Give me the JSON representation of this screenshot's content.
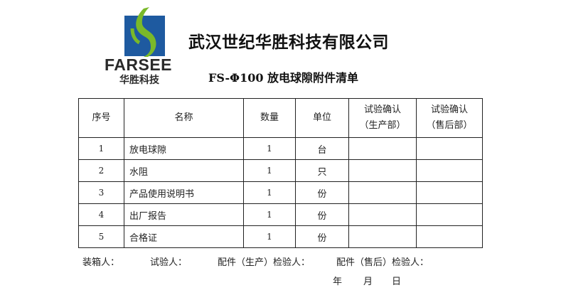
{
  "logo": {
    "brand": "FARSEE",
    "brand_cn": "华胜科技",
    "colors": {
      "blue": "#1e5aa0",
      "green": "#7ab929"
    }
  },
  "company": "武汉世纪华胜科技有限公司",
  "title": "FS-Φ100 放电球隙附件清单",
  "table": {
    "headers": [
      "序号",
      "名称",
      "数量",
      "单位",
      "试验确认（生产部）",
      "试验确认（售后部）"
    ],
    "header_lines": [
      [
        "试验确认",
        "（生产部）"
      ],
      [
        "试验确认",
        "（售后部）"
      ]
    ],
    "rows": [
      {
        "no": "1",
        "name": "放电球隙",
        "qty": "1",
        "unit": "台"
      },
      {
        "no": "2",
        "name": "水阻",
        "qty": "1",
        "unit": "只"
      },
      {
        "no": "3",
        "name": "产品使用说明书",
        "qty": "1",
        "unit": "份"
      },
      {
        "no": "4",
        "name": "出厂报告",
        "qty": "1",
        "unit": "份"
      },
      {
        "no": "5",
        "name": "合格证",
        "qty": "1",
        "unit": "份"
      }
    ]
  },
  "footer": {
    "packer": "装箱人：",
    "tester": "试验人：",
    "inspector_prod": "配件（生产）检验人：",
    "inspector_after": "配件（售后）检验人：",
    "year": "年",
    "month": "月",
    "day": "日"
  }
}
